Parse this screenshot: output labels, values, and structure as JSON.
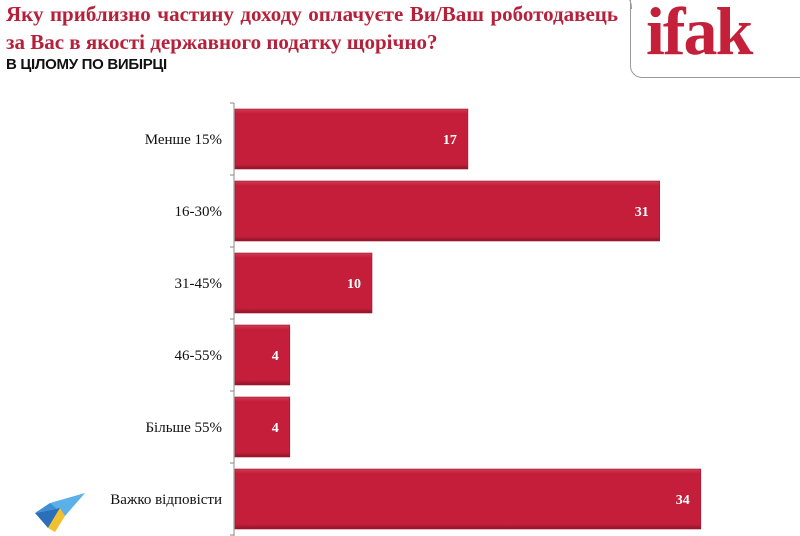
{
  "header": {
    "title": "Яку приблизно частину доходу оплачуєте Ви/Ваш роботодавець за Вас в якості державного податку щорічно?",
    "subtitle": "В ЦІЛОМУ ПО ВИБІРЦІ",
    "logo_text": "ifak"
  },
  "chart_data": {
    "type": "bar",
    "orientation": "horizontal",
    "categories": [
      "Менше 15%",
      "16-30%",
      "31-45%",
      "46-55%",
      "Більше 55%",
      "Важко відповісти"
    ],
    "values": [
      17,
      31,
      10,
      4,
      4,
      34
    ],
    "title": "Яку приблизно частину доходу оплачуєте Ви/Ваш роботодавець за Вас в якості державного податку щорічно?",
    "subtitle": "В ЦІЛОМУ ПО ВИБІРЦІ",
    "bar_color": "#c41e3a",
    "data_labels": true,
    "grid": false
  }
}
